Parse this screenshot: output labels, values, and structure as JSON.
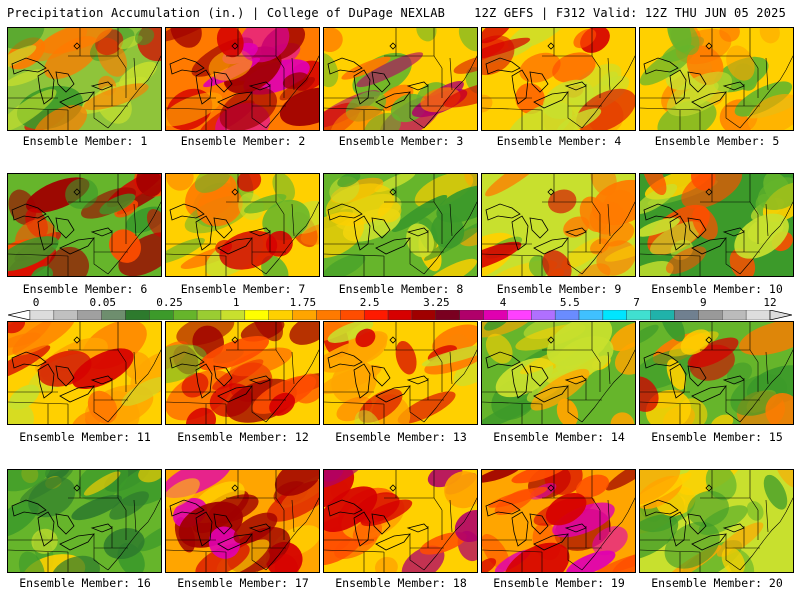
{
  "header": {
    "title": "Precipitation Accumulation (in.) | College of DuPage NEXLAB",
    "run_info": "12Z GEFS | F312 Valid: 12Z THU JUN 05 2025"
  },
  "colorbar": {
    "labels": [
      "0",
      "0.05",
      "0.25",
      "1",
      "1.75",
      "2.5",
      "3.25",
      "4",
      "5.5",
      "7",
      "9",
      "12"
    ],
    "colors": [
      "#dcdcdc",
      "#c0c0c0",
      "#a0a0a0",
      "#6e8e6e",
      "#2d7a2d",
      "#3c9a2a",
      "#66b52b",
      "#9acd32",
      "#c8e02e",
      "#ffff00",
      "#ffd000",
      "#ffa500",
      "#ff7a00",
      "#ff4d00",
      "#ff1a00",
      "#d60000",
      "#a00000",
      "#7a0020",
      "#b0006a",
      "#e000b0",
      "#ff40ff",
      "#b070ff",
      "#6a8cff",
      "#40c0ff",
      "#00e5ff",
      "#40e0d0",
      "#20b2aa",
      "#708090",
      "#999999",
      "#bbbbbb",
      "#dddddd"
    ]
  },
  "members": [
    {
      "label": "Ensemble Member: 1",
      "scheme": [
        "#8fc43a",
        "#3c9a2a",
        "#c8e02e",
        "#ff7a00",
        "#d60000"
      ]
    },
    {
      "label": "Ensemble Member: 2",
      "scheme": [
        "#ff7a00",
        "#ffa500",
        "#d60000",
        "#a00000",
        "#e000b0"
      ]
    },
    {
      "label": "Ensemble Member: 3",
      "scheme": [
        "#ffd000",
        "#66b52b",
        "#ff7a00",
        "#d60000",
        "#b0006a"
      ]
    },
    {
      "label": "Ensemble Member: 4",
      "scheme": [
        "#ffd000",
        "#ffa500",
        "#ff4d00",
        "#d60000",
        "#c8e02e"
      ]
    },
    {
      "label": "Ensemble Member: 5",
      "scheme": [
        "#ffd000",
        "#c8e02e",
        "#ffa500",
        "#66b52b",
        "#ff7a00"
      ]
    },
    {
      "label": "Ensemble Member: 6",
      "scheme": [
        "#66b52b",
        "#ff4d00",
        "#d60000",
        "#a00000",
        "#3c9a2a"
      ]
    },
    {
      "label": "Ensemble Member: 7",
      "scheme": [
        "#ffd000",
        "#66b52b",
        "#ff7a00",
        "#d60000",
        "#c8e02e"
      ]
    },
    {
      "label": "Ensemble Member: 8",
      "scheme": [
        "#66b52b",
        "#c8e02e",
        "#ffd000",
        "#3c9a2a",
        "#ffa500"
      ]
    },
    {
      "label": "Ensemble Member: 9",
      "scheme": [
        "#c8e02e",
        "#ffd000",
        "#66b52b",
        "#ff7a00",
        "#d60000"
      ]
    },
    {
      "label": "Ensemble Member: 10",
      "scheme": [
        "#3c9a2a",
        "#66b52b",
        "#c8e02e",
        "#ffd000",
        "#ff4d00"
      ]
    },
    {
      "label": "Ensemble Member: 11",
      "scheme": [
        "#ffd000",
        "#ffa500",
        "#c8e02e",
        "#ff7a00",
        "#d60000"
      ]
    },
    {
      "label": "Ensemble Member: 12",
      "scheme": [
        "#ffd000",
        "#66b52b",
        "#ff4d00",
        "#d60000",
        "#a00000"
      ]
    },
    {
      "label": "Ensemble Member: 13",
      "scheme": [
        "#ffd000",
        "#ffa500",
        "#ff7a00",
        "#d60000",
        "#c8e02e"
      ]
    },
    {
      "label": "Ensemble Member: 14",
      "scheme": [
        "#66b52b",
        "#3c9a2a",
        "#c8e02e",
        "#ffd000",
        "#ffa500"
      ]
    },
    {
      "label": "Ensemble Member: 15",
      "scheme": [
        "#66b52b",
        "#ffd000",
        "#ff7a00",
        "#d60000",
        "#3c9a2a"
      ]
    },
    {
      "label": "Ensemble Member: 16",
      "scheme": [
        "#66b52b",
        "#3c9a2a",
        "#c8e02e",
        "#ffd000",
        "#2d7a2d"
      ]
    },
    {
      "label": "Ensemble Member: 17",
      "scheme": [
        "#ffa500",
        "#d60000",
        "#a00000",
        "#e000b0",
        "#ffd000"
      ]
    },
    {
      "label": "Ensemble Member: 18",
      "scheme": [
        "#ffd000",
        "#ffa500",
        "#ff4d00",
        "#d60000",
        "#b0006a"
      ]
    },
    {
      "label": "Ensemble Member: 19",
      "scheme": [
        "#ffa500",
        "#ff4d00",
        "#d60000",
        "#a00000",
        "#e000b0"
      ]
    },
    {
      "label": "Ensemble Member: 20",
      "scheme": [
        "#c8e02e",
        "#ffd000",
        "#66b52b",
        "#ffa500",
        "#3c9a2a"
      ]
    }
  ]
}
